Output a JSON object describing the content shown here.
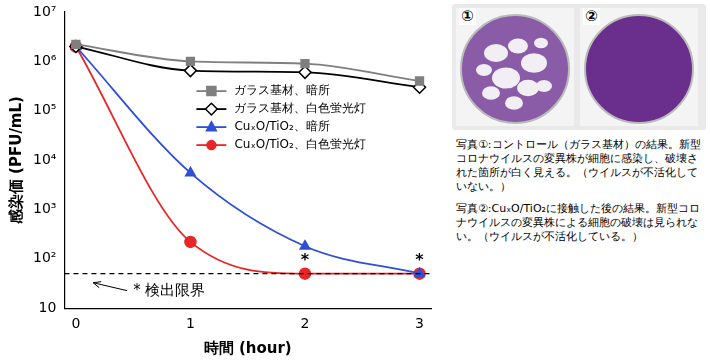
{
  "chart_data": {
    "type": "line",
    "x_label": "時間 (hour)",
    "y_label": "感染価 (PFU/mL)",
    "log": "y",
    "grid": false,
    "legend": "center",
    "x": [
      0,
      1,
      2,
      3
    ],
    "xlim": [
      -0.1,
      3.1
    ],
    "xticks": [
      0,
      1,
      2,
      3
    ],
    "ylim": [
      10,
      10000000
    ],
    "yticks": [
      10,
      {
        "value": 100,
        "label": "10²"
      },
      {
        "value": 1000,
        "label": "10³"
      },
      {
        "value": 10000,
        "label": "10⁴"
      },
      {
        "value": 100000,
        "label": "10⁵"
      },
      {
        "value": 1000000,
        "label": "10⁶"
      },
      {
        "value": 10000000,
        "label": "10⁷"
      }
    ],
    "series": [
      {
        "name": "ガラス基材、暗所",
        "color": "#7f7f7f",
        "marker": "square",
        "values": [
          2200000,
          1000000,
          900000,
          400000
        ]
      },
      {
        "name": "ガラス基材、白色蛍光灯",
        "color": "#000000",
        "marker": "diamond",
        "values": [
          2000000,
          650000,
          600000,
          300000
        ]
      },
      {
        "name": "CuₓO/TiO₂、暗所",
        "color": "#2e4fd6",
        "marker": "triangle",
        "values": [
          2000000,
          5500,
          180,
          50
        ]
      },
      {
        "name": "CuₓO/TiO₂、白色蛍光灯",
        "color": "#e8262a",
        "marker": "circle",
        "values": [
          2000000,
          220,
          50,
          50
        ]
      }
    ],
    "detection_limit": {
      "value": 50,
      "label": "* 検出限界"
    },
    "annotations": [
      {
        "text": "*",
        "x": 2,
        "y": 50
      },
      {
        "text": "*",
        "x": 3,
        "y": 50
      }
    ]
  },
  "photos": [
    {
      "label": "①",
      "caption": "写真①:コントロール（ガラス基材）の結果。新型コロナウイルスの変異株が細胞に感染し、破壊された箇所が白く見える。（ウイルスが不活化していない。）"
    },
    {
      "label": "②",
      "caption": "写真②:CuₓO/TiO₂に接触した後の結果。新型コロナウイルスの変異株による細胞の破壊は見られない。（ウイルスが不活化している。）"
    }
  ]
}
